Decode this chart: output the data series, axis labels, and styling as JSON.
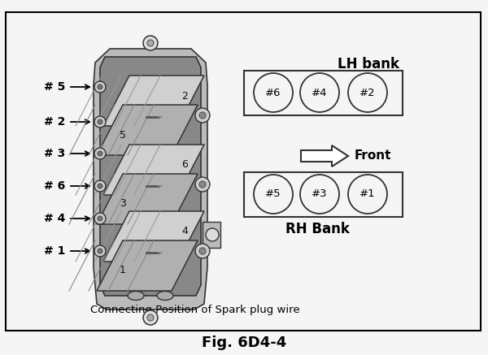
{
  "title": "Fig. 6D4-4",
  "subtitle": "Connecting Position of Spark plug wire",
  "bg_color": "#f5f5f5",
  "border_color": "#000000",
  "lh_bank_label": "LH bank",
  "rh_bank_label": "RH Bank",
  "front_label": "Front",
  "lh_cylinders": [
    "#6",
    "#4",
    "#2"
  ],
  "rh_cylinders": [
    "#5",
    "#3",
    "#1"
  ],
  "left_labels": [
    "# 5",
    "# 2",
    "# 3",
    "# 6",
    "# 4",
    "# 1"
  ],
  "coil_body_color": "#c0c0c0",
  "coil_module_color": "#d8d8d8",
  "coil_module_dark": "#888888",
  "coil_edge_color": "#222222"
}
